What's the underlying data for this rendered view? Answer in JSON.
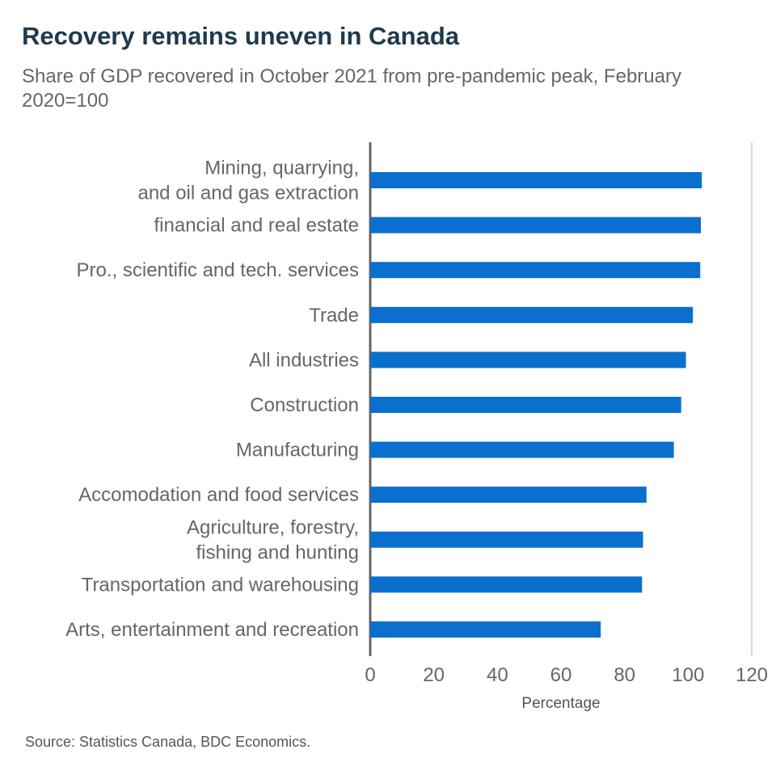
{
  "title": "Recovery remains uneven in Canada",
  "subtitle": "Share of GDP recovered in October 2021 from pre-pandemic peak, February 2020=100",
  "source": "Source: Statistics Canada, BDC Economics.",
  "colors": {
    "bar": "#0a6fcd",
    "title": "#1f3a4d",
    "text": "#666666",
    "axis": "#666666",
    "grid": "#cccccc"
  },
  "chart_data": {
    "type": "bar",
    "orientation": "horizontal",
    "categories": [
      "Mining, quarrying, and oil and gas extraction",
      "financial and real estate",
      "Pro., scientific and tech. services",
      "Trade",
      "All industries",
      "Construction",
      "Manufacturing",
      "Accomodation and food services",
      "Agriculture, forestry, fishing and hunting",
      "Transportation and warehousing",
      "Arts, entertainment and recreation"
    ],
    "category_label_lines": [
      [
        "Mining, quarrying,",
        "and oil and gas extraction"
      ],
      [
        "financial and real estate"
      ],
      [
        "Pro., scientific and tech. services"
      ],
      [
        "Trade"
      ],
      [
        "All industries"
      ],
      [
        "Construction"
      ],
      [
        "Manufacturing"
      ],
      [
        "Accomodation and food services"
      ],
      [
        "Agriculture, forestry,",
        "fishing and hunting"
      ],
      [
        "Transportation and warehousing"
      ],
      [
        "Arts, entertainment and recreation"
      ]
    ],
    "values": [
      104.3,
      104.0,
      103.8,
      101.5,
      99.3,
      97.8,
      95.5,
      86.9,
      85.8,
      85.5,
      72.5
    ],
    "xlabel": "Percentage",
    "ylabel": "",
    "xlim": [
      0,
      120
    ],
    "xticks": [
      0,
      20,
      40,
      60,
      80,
      100,
      120
    ],
    "grid": false,
    "legend": "none"
  }
}
